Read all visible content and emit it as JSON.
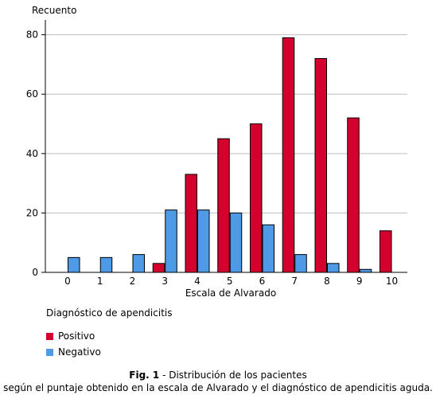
{
  "chart_data": {
    "type": "bar",
    "ylabel": "Recuento",
    "xlabel": "Escala de Alvarado",
    "categories": [
      "0",
      "1",
      "2",
      "3",
      "4",
      "5",
      "6",
      "7",
      "8",
      "9",
      "10"
    ],
    "ylim": [
      0,
      85
    ],
    "yticks": [
      0,
      20,
      40,
      60,
      80
    ],
    "grid": true,
    "legend_title": "Diagnóstico de apendicitis",
    "legend_position": "bottom-left",
    "series": [
      {
        "name": "Positivo",
        "color": "#d4002e",
        "values": [
          0,
          0,
          0,
          3,
          33,
          45,
          50,
          79,
          72,
          52,
          14
        ]
      },
      {
        "name": "Negativo",
        "color": "#4f9ae6",
        "values": [
          5,
          5,
          6,
          21,
          21,
          20,
          16,
          6,
          3,
          1,
          0
        ]
      }
    ]
  },
  "caption": {
    "label": "Fig. 1",
    "line1": " - Distribución de los pacientes",
    "line2": "según el puntaje obtenido en la escala de Alvarado y el diagnóstico de apendicitis aguda."
  }
}
